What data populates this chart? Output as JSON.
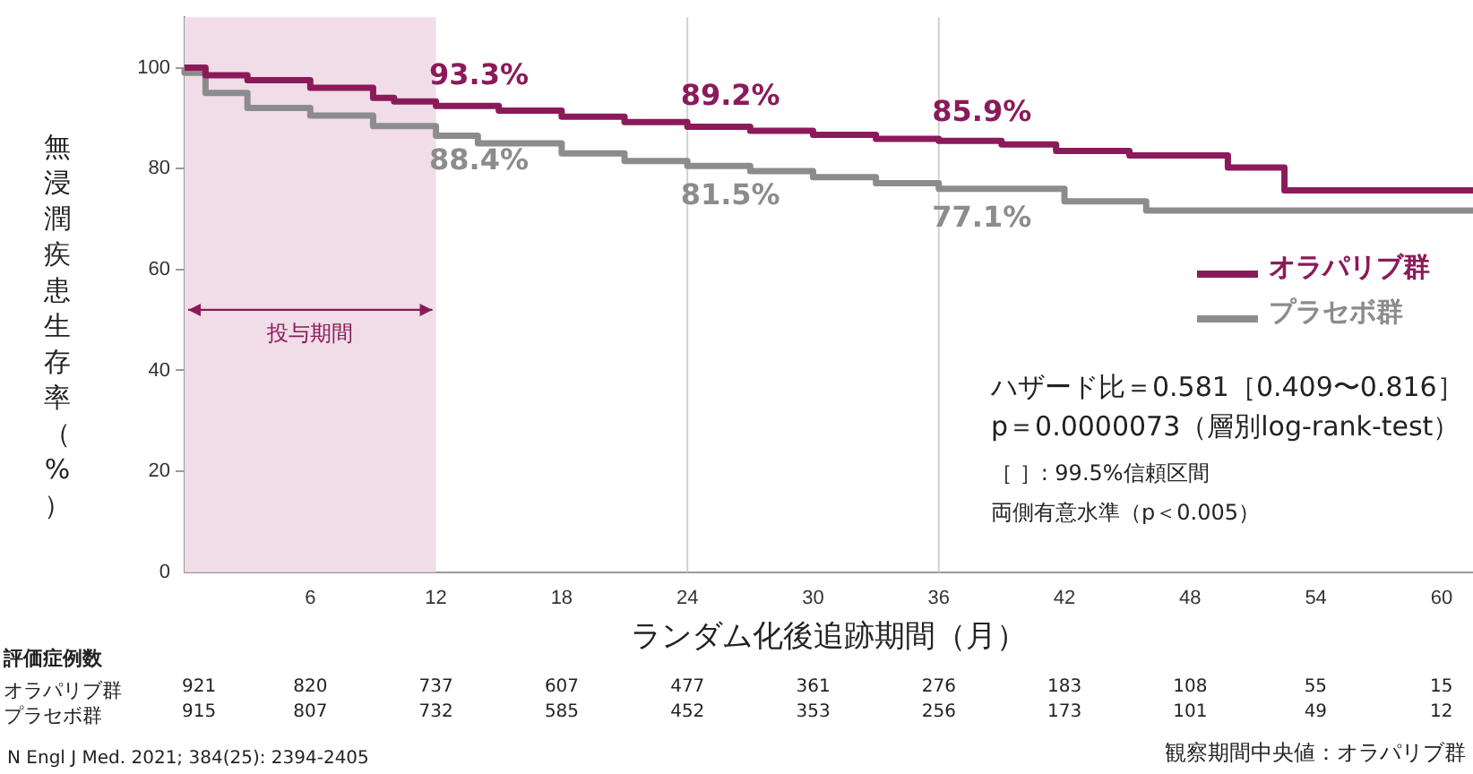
{
  "chart_data": {
    "type": "step",
    "xlabel": "ランダム化後追跡期間（月）",
    "ylabel": "無浸潤疾患生存率（%）",
    "xlim": [
      0,
      61.5
    ],
    "xticks": [
      6,
      12,
      18,
      24,
      30,
      36,
      42,
      48,
      54,
      60
    ],
    "ylim": [
      0,
      110
    ],
    "yticks": [
      0,
      20,
      40,
      60,
      80,
      100
    ],
    "grid": false,
    "legend": "right",
    "series": [
      {
        "name": "オラパリブ群",
        "color": "#8b1a5a",
        "x": [
          0,
          1,
          3,
          6,
          9,
          10,
          12,
          15,
          18,
          21,
          24,
          27,
          30,
          33,
          36,
          39,
          41.6,
          45.1,
          49.8,
          52.5,
          60.4,
          61.5
        ],
        "values": [
          100,
          100,
          98.5,
          97.5,
          96,
          94,
          93.3,
          92.4,
          91.5,
          90.3,
          89.2,
          88.3,
          87.5,
          86.7,
          85.9,
          85.5,
          84.8,
          83.5,
          82.6,
          80.2,
          75.7,
          75.7
        ]
      },
      {
        "name": "プラセボ群",
        "color": "#8c8c8c",
        "x": [
          0,
          1,
          3,
          6,
          9,
          12,
          14,
          18,
          21,
          24,
          27,
          30,
          33,
          36,
          42,
          45.9,
          49.8,
          61.5
        ],
        "values": [
          100,
          99,
          95,
          92,
          90.5,
          88.4,
          86.5,
          85,
          83,
          81.5,
          80.5,
          79.5,
          78.3,
          77.1,
          76,
          73.5,
          71.7,
          71.7
        ]
      }
    ],
    "bands": [
      {
        "axis": "x",
        "from": 0,
        "to": 12,
        "label": "投与期間",
        "color": "#f0dde8"
      }
    ],
    "ref_lines": [
      {
        "axis": "x",
        "value": 24,
        "color": "#d0d0d0"
      },
      {
        "axis": "x",
        "value": 36,
        "color": "#d0d0d0"
      }
    ],
    "annotations": [
      {
        "text": "93.3%",
        "x": 12,
        "y": 93.3
      },
      {
        "text": "89.2%",
        "x": 24,
        "y": 89.2
      },
      {
        "text": "85.9%",
        "x": 36,
        "y": 85.9
      },
      {
        "text": "88.4%",
        "x": 12,
        "y": 88.4
      },
      {
        "text": "81.5%",
        "x": 24,
        "y": 81.5
      },
      {
        "text": "77.1%",
        "x": 36,
        "y": 77.1
      },
      "ハザード比＝0.581［0.409〜0.816］",
      "p＝0.0000073（層別log-rank-test）",
      "［ ］: 99.5%信頼区間",
      "両側有意水準（p＜0.005）",
      "評価症例数",
      "オラパリブ群",
      "921",
      "820",
      "737",
      "607",
      "477",
      "361",
      "276",
      "183",
      "108",
      "55",
      "15",
      "プラセボ群",
      "915",
      "807",
      "732",
      "585",
      "452",
      "353",
      "256",
      "173",
      "101",
      "49",
      "12",
      "観察期間中央値：オラパリブ群",
      "N Engl J Med. 2021; 384(25): 2394-2405"
    ]
  }
}
